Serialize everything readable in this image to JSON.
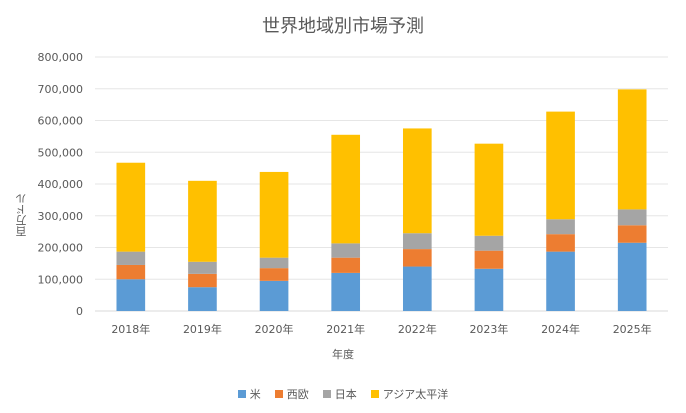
{
  "chart_data": {
    "type": "bar",
    "stacked": true,
    "title": "世界地域別市場予測",
    "xlabel": "年度",
    "ylabel": "百万ドル",
    "ylim": [
      0,
      800000
    ],
    "yticks": [
      "0",
      "100,000",
      "200,000",
      "300,000",
      "400,000",
      "500,000",
      "600,000",
      "700,000",
      "800,000"
    ],
    "grid": true,
    "legend_position": "bottom",
    "categories": [
      "2018年",
      "2019年",
      "2020年",
      "2021年",
      "2022年",
      "2023年",
      "2024年",
      "2025年"
    ],
    "series": [
      {
        "name": "米",
        "color": "#5B9BD5",
        "values": [
          100000,
          75000,
          95000,
          120000,
          140000,
          133000,
          187000,
          215000
        ]
      },
      {
        "name": "西欧",
        "color": "#ED7D31",
        "values": [
          45000,
          42000,
          40000,
          48000,
          55000,
          57000,
          55000,
          55000
        ]
      },
      {
        "name": "日本",
        "color": "#A5A5A5",
        "values": [
          42000,
          38000,
          33000,
          45000,
          50000,
          47000,
          47000,
          50000
        ]
      },
      {
        "name": "アジア太平洋",
        "color": "#FFC000",
        "values": [
          280000,
          255000,
          270000,
          342000,
          330000,
          290000,
          339000,
          378000
        ]
      }
    ]
  }
}
